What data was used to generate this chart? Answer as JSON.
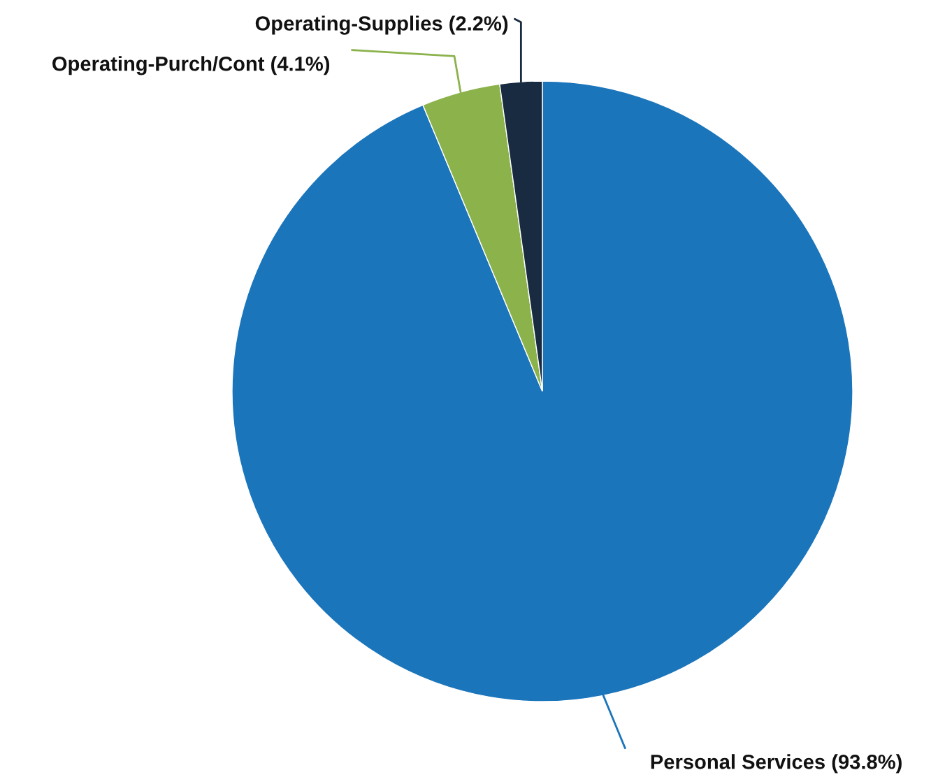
{
  "chart_data": {
    "type": "pie",
    "categories": [
      "Personal Services",
      "Operating-Purch/Cont",
      "Operating-Supplies"
    ],
    "values": [
      93.8,
      4.1,
      2.2
    ],
    "colors": [
      "#1b75bb",
      "#8cb24c",
      "#182b40"
    ],
    "value_labels": [
      "(93.8%)",
      "(4.1%)",
      "(2.2%)"
    ],
    "legend": false
  }
}
